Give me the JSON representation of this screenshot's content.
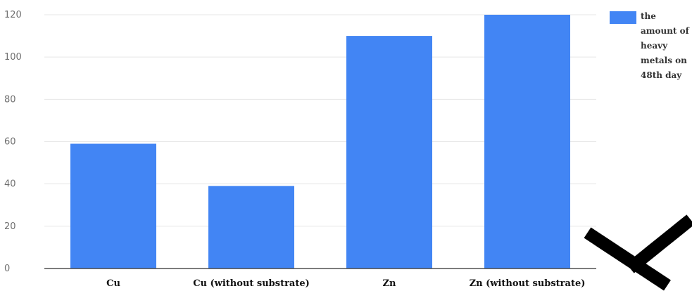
{
  "chart_data": {
    "type": "bar",
    "categories": [
      "Cu",
      "Cu (without substrate)",
      "Zn",
      "Zn (without substrate)"
    ],
    "series": [
      {
        "name": "the amount of heavy metals on 48th day",
        "values": [
          59,
          39,
          110,
          120
        ]
      }
    ],
    "ylim": [
      0,
      120
    ],
    "yticks": [
      0,
      20,
      40,
      60,
      80,
      100,
      120
    ],
    "grid": true,
    "legend": {
      "placement": "right",
      "lines": [
        "the",
        "amount of",
        "heavy",
        "metals on",
        "48th day"
      ]
    },
    "colors": {
      "bar": "#4285f4",
      "grid": "#e7e7e7",
      "axis": "#2f2f2f"
    },
    "icons": [
      "corner-watermark-icon"
    ]
  }
}
